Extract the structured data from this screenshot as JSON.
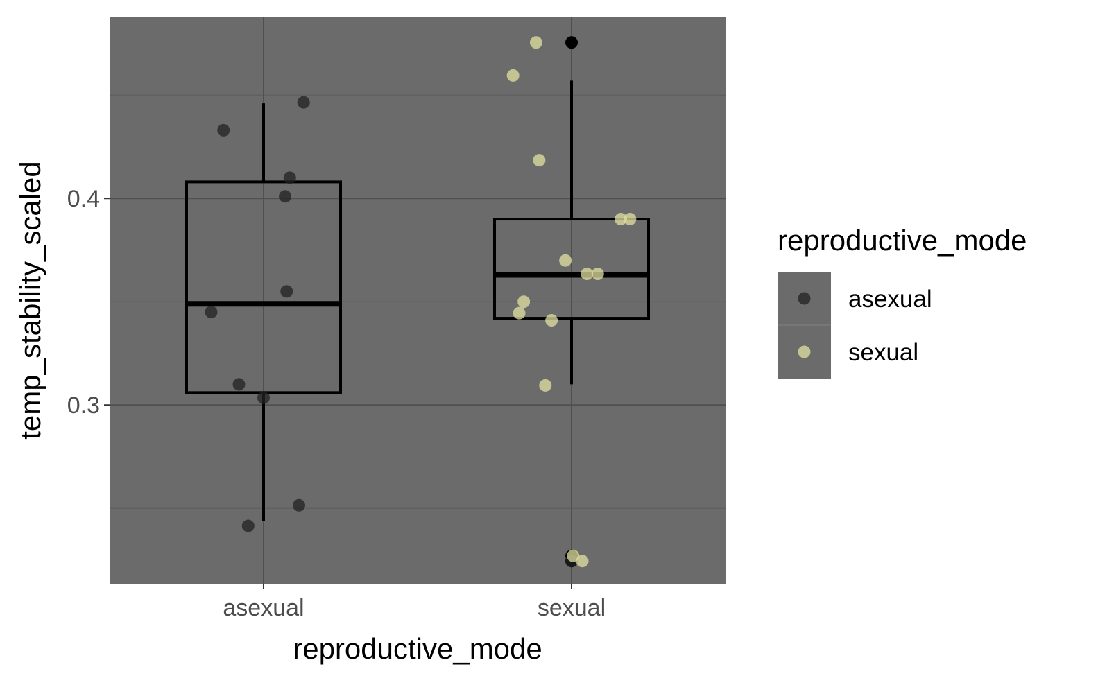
{
  "chart_data": {
    "type": "box",
    "xlabel": "reproductive_mode",
    "ylabel": "temp_stability_scaled",
    "categories": [
      "asexual",
      "sexual"
    ],
    "ylim": [
      0.2135,
      0.488
    ],
    "yticks": [
      0.3,
      0.4
    ],
    "ytick_labels": [
      "0.3",
      "0.4"
    ],
    "grid": true,
    "legend": {
      "title": "reproductive_mode",
      "position": "right",
      "entries": [
        {
          "label": "asexual",
          "color": "#222222"
        },
        {
          "label": "sexual",
          "color": "#e0e0a0"
        }
      ]
    },
    "colors": {
      "panel": "#6b6b6b",
      "grid_major": "#505050",
      "grid_minor": "#5e5e5e",
      "box": "#000000",
      "asexual": "#222222",
      "sexual": "#e0e0a0"
    },
    "boxes": [
      {
        "category": "asexual",
        "lower_whisker": 0.244,
        "q1": 0.306,
        "median": 0.349,
        "q3": 0.408,
        "upper_whisker": 0.446,
        "outliers": []
      },
      {
        "category": "sexual",
        "lower_whisker": 0.31,
        "q1": 0.342,
        "median": 0.363,
        "q3": 0.39,
        "upper_whisker": 0.457,
        "outliers": [
          0.4755,
          0.2245,
          0.227
        ]
      }
    ],
    "points": [
      {
        "series": "asexual",
        "category": "asexual",
        "jitter": 0.13,
        "y": 0.4465
      },
      {
        "series": "asexual",
        "category": "asexual",
        "jitter": -0.13,
        "y": 0.433
      },
      {
        "series": "asexual",
        "category": "asexual",
        "jitter": 0.085,
        "y": 0.41
      },
      {
        "series": "asexual",
        "category": "asexual",
        "jitter": 0.07,
        "y": 0.401
      },
      {
        "series": "asexual",
        "category": "asexual",
        "jitter": 0.075,
        "y": 0.355
      },
      {
        "series": "asexual",
        "category": "asexual",
        "jitter": -0.17,
        "y": 0.345
      },
      {
        "series": "asexual",
        "category": "asexual",
        "jitter": -0.08,
        "y": 0.31
      },
      {
        "series": "asexual",
        "category": "asexual",
        "jitter": 0.0,
        "y": 0.3035
      },
      {
        "series": "asexual",
        "category": "asexual",
        "jitter": 0.115,
        "y": 0.2515
      },
      {
        "series": "asexual",
        "category": "asexual",
        "jitter": -0.05,
        "y": 0.2415
      },
      {
        "series": "asexual",
        "category": "sexual",
        "jitter": 0.0,
        "y": 0.2245
      },
      {
        "series": "sexual",
        "category": "sexual",
        "jitter": -0.115,
        "y": 0.4755
      },
      {
        "series": "sexual",
        "category": "sexual",
        "jitter": -0.19,
        "y": 0.4595
      },
      {
        "series": "sexual",
        "category": "sexual",
        "jitter": -0.105,
        "y": 0.4185
      },
      {
        "series": "sexual",
        "category": "sexual",
        "jitter": 0.16,
        "y": 0.39
      },
      {
        "series": "sexual",
        "category": "sexual",
        "jitter": 0.19,
        "y": 0.39
      },
      {
        "series": "sexual",
        "category": "sexual",
        "jitter": -0.02,
        "y": 0.37
      },
      {
        "series": "sexual",
        "category": "sexual",
        "jitter": 0.05,
        "y": 0.3635
      },
      {
        "series": "sexual",
        "category": "sexual",
        "jitter": 0.085,
        "y": 0.3635
      },
      {
        "series": "sexual",
        "category": "sexual",
        "jitter": -0.155,
        "y": 0.35
      },
      {
        "series": "sexual",
        "category": "sexual",
        "jitter": -0.17,
        "y": 0.3445
      },
      {
        "series": "sexual",
        "category": "sexual",
        "jitter": -0.065,
        "y": 0.341
      },
      {
        "series": "sexual",
        "category": "sexual",
        "jitter": -0.085,
        "y": 0.3095
      },
      {
        "series": "sexual",
        "category": "sexual",
        "jitter": 0.005,
        "y": 0.227
      },
      {
        "series": "sexual",
        "category": "sexual",
        "jitter": 0.035,
        "y": 0.2245
      }
    ]
  }
}
